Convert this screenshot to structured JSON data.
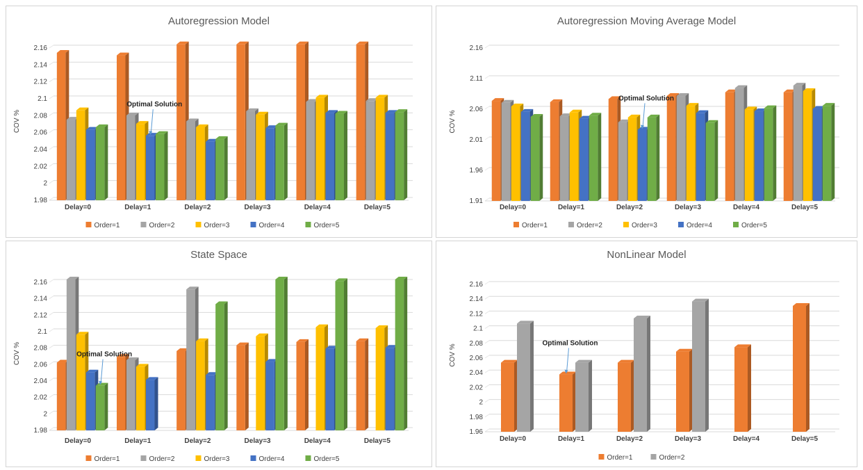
{
  "colors": {
    "Order=1": "#ed7d31",
    "Order=2": "#a5a5a5",
    "Order=3": "#ffc000",
    "Order=4": "#4472c4",
    "Order=5": "#70ad47",
    "annotation_arrow": "#5b9bd5"
  },
  "chart_data": [
    {
      "type": "bar",
      "title": "Autoregression Model",
      "ylabel": "COV %",
      "xlabel": "",
      "ylim": [
        1.98,
        2.16
      ],
      "yticks": [
        "1.98",
        "2",
        "2.02",
        "2.04",
        "2.06",
        "2.08",
        "2.1",
        "2.12",
        "2.14",
        "2.16"
      ],
      "grid": true,
      "legend": "bottom",
      "categories": [
        "Delay=0",
        "Delay=1",
        "Delay=2",
        "Delay=3",
        "Delay=4",
        "Delay=5"
      ],
      "series": [
        {
          "name": "Order=1",
          "values": [
            2.151,
            2.148,
            2.161,
            2.161,
            2.161,
            2.161
          ]
        },
        {
          "name": "Order=2",
          "values": [
            2.072,
            2.077,
            2.07,
            2.082,
            2.093,
            2.094
          ]
        },
        {
          "name": "Order=3",
          "values": [
            2.083,
            2.067,
            2.063,
            2.078,
            2.098,
            2.098
          ]
        },
        {
          "name": "Order=4",
          "values": [
            2.06,
            2.053,
            2.046,
            2.062,
            2.08,
            2.08
          ]
        },
        {
          "name": "Order=5",
          "values": [
            2.063,
            2.055,
            2.049,
            2.065,
            2.079,
            2.081
          ]
        }
      ],
      "annotation": {
        "text": "Optimal Solution",
        "category": 1,
        "series": 3
      }
    },
    {
      "type": "bar",
      "title": "Autoregression Moving Average Model",
      "ylabel": "COV %",
      "xlabel": "",
      "ylim": [
        1.91,
        2.16
      ],
      "yticks": [
        "1.91",
        "1.96",
        "2.01",
        "2.06",
        "2.11",
        "2.16"
      ],
      "grid": true,
      "legend": "bottom",
      "categories": [
        "Delay=0",
        "Delay=1",
        "Delay=2",
        "Delay=3",
        "Delay=4",
        "Delay=5"
      ],
      "series": [
        {
          "name": "Order=1",
          "values": [
            2.069,
            2.067,
            2.072,
            2.077,
            2.083,
            2.083
          ]
        },
        {
          "name": "Order=2",
          "values": [
            2.066,
            2.044,
            2.034,
            2.077,
            2.09,
            2.094
          ]
        },
        {
          "name": "Order=3",
          "values": [
            2.06,
            2.05,
            2.042,
            2.061,
            2.055,
            2.085
          ]
        },
        {
          "name": "Order=4",
          "values": [
            2.051,
            2.04,
            2.022,
            2.049,
            2.052,
            2.056
          ]
        },
        {
          "name": "Order=5",
          "values": [
            2.043,
            2.045,
            2.042,
            2.033,
            2.057,
            2.061
          ]
        }
      ],
      "annotation": {
        "text": "Optimal Solution",
        "category": 2,
        "series": 3
      }
    },
    {
      "type": "bar",
      "title": "State Space",
      "ylabel": "COV %",
      "xlabel": "",
      "ylim": [
        1.98,
        2.16
      ],
      "yticks": [
        "1.98",
        "2",
        "2.02",
        "2.04",
        "2.06",
        "2.08",
        "2.1",
        "2.12",
        "2.14",
        "2.16"
      ],
      "grid": true,
      "legend": "bottom",
      "categories": [
        "Delay=0",
        "Delay=1",
        "Delay=2",
        "Delay=3",
        "Delay=4",
        "Delay=5"
      ],
      "series": [
        {
          "name": "Order=1",
          "values": [
            2.059,
            2.066,
            2.073,
            2.08,
            2.084,
            2.085
          ]
        },
        {
          "name": "Order=2",
          "values": [
            2.16,
            2.062,
            2.148,
            null,
            null,
            null
          ]
        },
        {
          "name": "Order=3",
          "values": [
            2.093,
            2.054,
            2.085,
            2.091,
            2.102,
            2.101
          ]
        },
        {
          "name": "Order=4",
          "values": [
            2.047,
            2.038,
            2.044,
            2.06,
            2.076,
            2.077
          ]
        },
        {
          "name": "Order=5",
          "values": [
            2.031,
            null,
            2.13,
            2.16,
            2.158,
            2.16
          ]
        }
      ],
      "annotation": {
        "text": "Optimal Solution",
        "category": 0,
        "series": 4
      }
    },
    {
      "type": "bar",
      "title": "NonLinear Model",
      "ylabel": "COV %",
      "xlabel": "",
      "ylim": [
        1.96,
        2.16
      ],
      "yticks": [
        "1.96",
        "1.98",
        "2",
        "2.02",
        "2.04",
        "2.06",
        "2.08",
        "2.1",
        "2.12",
        "2.14",
        "2.16"
      ],
      "grid": true,
      "legend": "bottom",
      "categories": [
        "Delay=0",
        "Delay=1",
        "Delay=2",
        "Delay=3",
        "Delay=4",
        "Delay=5"
      ],
      "series": [
        {
          "name": "Order=1",
          "values": [
            2.05,
            2.034,
            2.05,
            2.065,
            2.071,
            2.127
          ]
        },
        {
          "name": "Order=2",
          "values": [
            2.103,
            2.05,
            2.11,
            2.133,
            null,
            null
          ]
        }
      ],
      "annotation": {
        "text": "Optimal Solution",
        "category": 1,
        "series": 0
      }
    }
  ]
}
